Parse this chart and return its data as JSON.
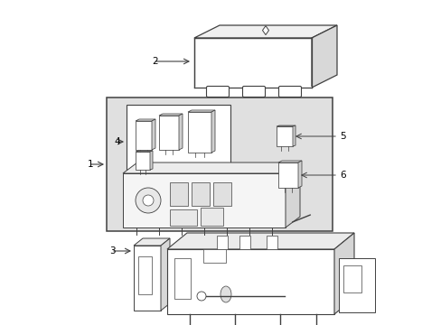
{
  "background_color": "#ffffff",
  "line_color": "#404040",
  "shaded_bg": "#e0e0e0",
  "label_color": "#000000",
  "label_fontsize": 7.5,
  "components": {
    "part2_label": "2",
    "part1_label": "1",
    "part3_label": "3",
    "part4_label": "4",
    "part5_label": "5",
    "part6_label": "6"
  }
}
